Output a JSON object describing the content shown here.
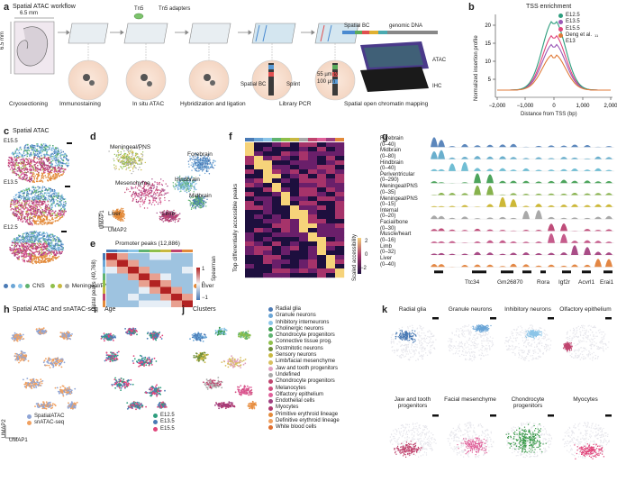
{
  "panel_a": {
    "label": "a",
    "title": "Spatial ATAC workflow",
    "dim_top": "6.5 mm",
    "dim_left": "6.5 mm",
    "tn5": "Tn5",
    "tn5_adapters": "Tn5 adapters",
    "spatial_bc_label": "Spatial BC",
    "splint": "Splint",
    "pore": "55 µm Ø",
    "depth": "100 µm",
    "bc_header_left": "Spatial BC",
    "bc_header_right": "genomic DNA",
    "atac": "ATAC",
    "ihc": "IHC",
    "steps": [
      "Cryosectioning",
      "Immunostaining",
      "In situ ATAC",
      "Hybridization and ligation",
      "Library PCR",
      "Spatial open chromatin mapping"
    ]
  },
  "panel_b": {
    "label": "b",
    "title": "TSS enrichment",
    "legend": [
      {
        "name": "E12.5",
        "color": "#2e9e7e"
      },
      {
        "name": "E13.5",
        "color": "#9b59b6"
      },
      {
        "name": "E15.5",
        "color": "#e0457b"
      },
      {
        "name": "Deng et al.",
        "sup": "11",
        "sub": "E13",
        "color": "#e07b39"
      }
    ],
    "ylabel": "Normalized insertion profile",
    "xlabel": "Distance from TSS (bp)",
    "yticks": [
      "20",
      "15",
      "10",
      "5"
    ],
    "xticks": [
      "−2,000",
      "−1,000",
      "0",
      "1,000",
      "2,000"
    ]
  },
  "panel_c": {
    "label": "c",
    "title": "Spatial ATAC",
    "samples": [
      "E15.5",
      "E13.5",
      "E12.5"
    ],
    "legend": [
      {
        "name": "CNS",
        "colors": [
          "#4a7ab5",
          "#6aa5d6",
          "#8cc5e8",
          "#5fb370"
        ]
      },
      {
        "name": "Meningeal/PNS",
        "colors": [
          "#8fbf4a",
          "#c8b840",
          "#a9a9a9"
        ]
      },
      {
        "name": "Mesenchyme/Limb",
        "colors": [
          "#c0446e",
          "#e0609a",
          "#a04080"
        ]
      },
      {
        "name": "Liver",
        "colors": [
          "#e38a3a"
        ]
      }
    ]
  },
  "panel_d": {
    "label": "d",
    "clusters": [
      "Meningeal/PNS",
      "Forebrain",
      "Mesenchyme",
      "Hindbrain",
      "Midbrain",
      "Limb",
      "Liver"
    ],
    "xaxis": "UMAP2",
    "yaxis": "UMAP1"
  },
  "panel_e": {
    "label": "e",
    "xtitle": "Promoter peaks (12,886)",
    "ytitle": "Distal peaks (49,768)",
    "scale_title": "Spearman",
    "scale_ticks": [
      "1",
      "0",
      "−1"
    ]
  },
  "panel_f": {
    "label": "f",
    "ylabel": "Top differentially accessible peaks",
    "scale_title": "Scaled accessibility",
    "scale_ticks": [
      "2",
      "0",
      "−2"
    ]
  },
  "panel_g": {
    "label": "g",
    "tracks": [
      {
        "name": "Forebrain",
        "range": "(0–40)",
        "color": "#4a7ab5"
      },
      {
        "name": "Midbrain",
        "range": "(0–80)",
        "color": "#5aa6c8"
      },
      {
        "name": "Hindbrain",
        "range": "(0–40)",
        "color": "#62b7cf"
      },
      {
        "name": "Periventricular",
        "range": "(0–290)",
        "color": "#3a9a4a"
      },
      {
        "name": "Meningeal/PNS",
        "range": "(0–35)",
        "color": "#7aaa3a"
      },
      {
        "name": "Meningeal/PNS",
        "range": "(0–15)",
        "color": "#c8b020"
      },
      {
        "name": "Internal",
        "range": "(0–20)",
        "color": "#a0a0a0"
      },
      {
        "name": "Facial/bone",
        "range": "(0–30)",
        "color": "#b8386a"
      },
      {
        "name": "Muscle/heart",
        "range": "(0–16)",
        "color": "#c04a80"
      },
      {
        "name": "Limb",
        "range": "(0–32)",
        "color": "#a03a7a"
      },
      {
        "name": "Liver",
        "range": "(0–40)",
        "color": "#e07a30"
      }
    ],
    "genes": [
      "Ttc34",
      "Gm26870",
      "Rora",
      "Igf2r",
      "Acvrl1",
      "Erai1"
    ]
  },
  "panel_h": {
    "label": "h",
    "title": "Spatial ATAC and snATAC-seq",
    "legend": [
      {
        "name": "SpatialATAC",
        "color": "#8fa5d6"
      },
      {
        "name": "snATAC-seq",
        "color": "#f0a060"
      }
    ],
    "xaxis": "UMAP1",
    "yaxis": "UMAP2"
  },
  "panel_i": {
    "label": "i",
    "title": "Age",
    "legend": [
      {
        "name": "E12.5",
        "color": "#2e9e7e"
      },
      {
        "name": "E13.5",
        "color": "#4a7ab5"
      },
      {
        "name": "E15.5",
        "color": "#e0457b"
      }
    ]
  },
  "panel_j": {
    "label": "j",
    "title": "Clusters",
    "legend": [
      {
        "name": "Radial glia",
        "color": "#4a7ab5"
      },
      {
        "name": "Granule neurons",
        "color": "#6aa5d6"
      },
      {
        "name": "Inhibitory interneurons",
        "color": "#8cc5e8"
      },
      {
        "name": "Cholinergic neurons",
        "color": "#3a9a4a"
      },
      {
        "name": "Chondrocyte progenitors",
        "color": "#5fb370"
      },
      {
        "name": "Connective tissue prog.",
        "color": "#8fbf4a"
      },
      {
        "name": "Postmitotic neurons",
        "color": "#6e8e3a"
      },
      {
        "name": "Sensory neurons",
        "color": "#c8b840"
      },
      {
        "name": "Limb/facial mesenchyme",
        "color": "#d8c060"
      },
      {
        "name": "Jaw and tooth progenitors",
        "color": "#e0a0c0"
      },
      {
        "name": "Undefined",
        "color": "#a9a9a9"
      },
      {
        "name": "Chondrocyte progenitors",
        "color": "#c0446e"
      },
      {
        "name": "Melanocytes",
        "color": "#d05080"
      },
      {
        "name": "Olfactory epithelium",
        "color": "#e0609a"
      },
      {
        "name": "Endothelial cells",
        "color": "#a04080"
      },
      {
        "name": "Myocytes",
        "color": "#b03a70"
      },
      {
        "name": "Primitive erythroid lineage",
        "color": "#e38a3a"
      },
      {
        "name": "Definitive erythroid lineage",
        "color": "#f0a060"
      },
      {
        "name": "White blood cells",
        "color": "#e07030"
      }
    ]
  },
  "panel_k": {
    "label": "k",
    "cells": [
      {
        "name": "Radial glia",
        "color": "#4a7ab5"
      },
      {
        "name": "Granule neurons",
        "color": "#6aa5d6"
      },
      {
        "name": "Inhibitory neurons",
        "color": "#8cc5e8"
      },
      {
        "name": "Olfactory epithelium",
        "color": "#c0446e"
      },
      {
        "name": "Jaw and tooth progenitors",
        "color": "#c0446e"
      },
      {
        "name": "Facial mesenchyme",
        "color": "#e0609a"
      },
      {
        "name": "Chondrocyte progenitors",
        "color": "#3a9a4a"
      },
      {
        "name": "Myocytes",
        "color": "#e0457b"
      }
    ]
  }
}
